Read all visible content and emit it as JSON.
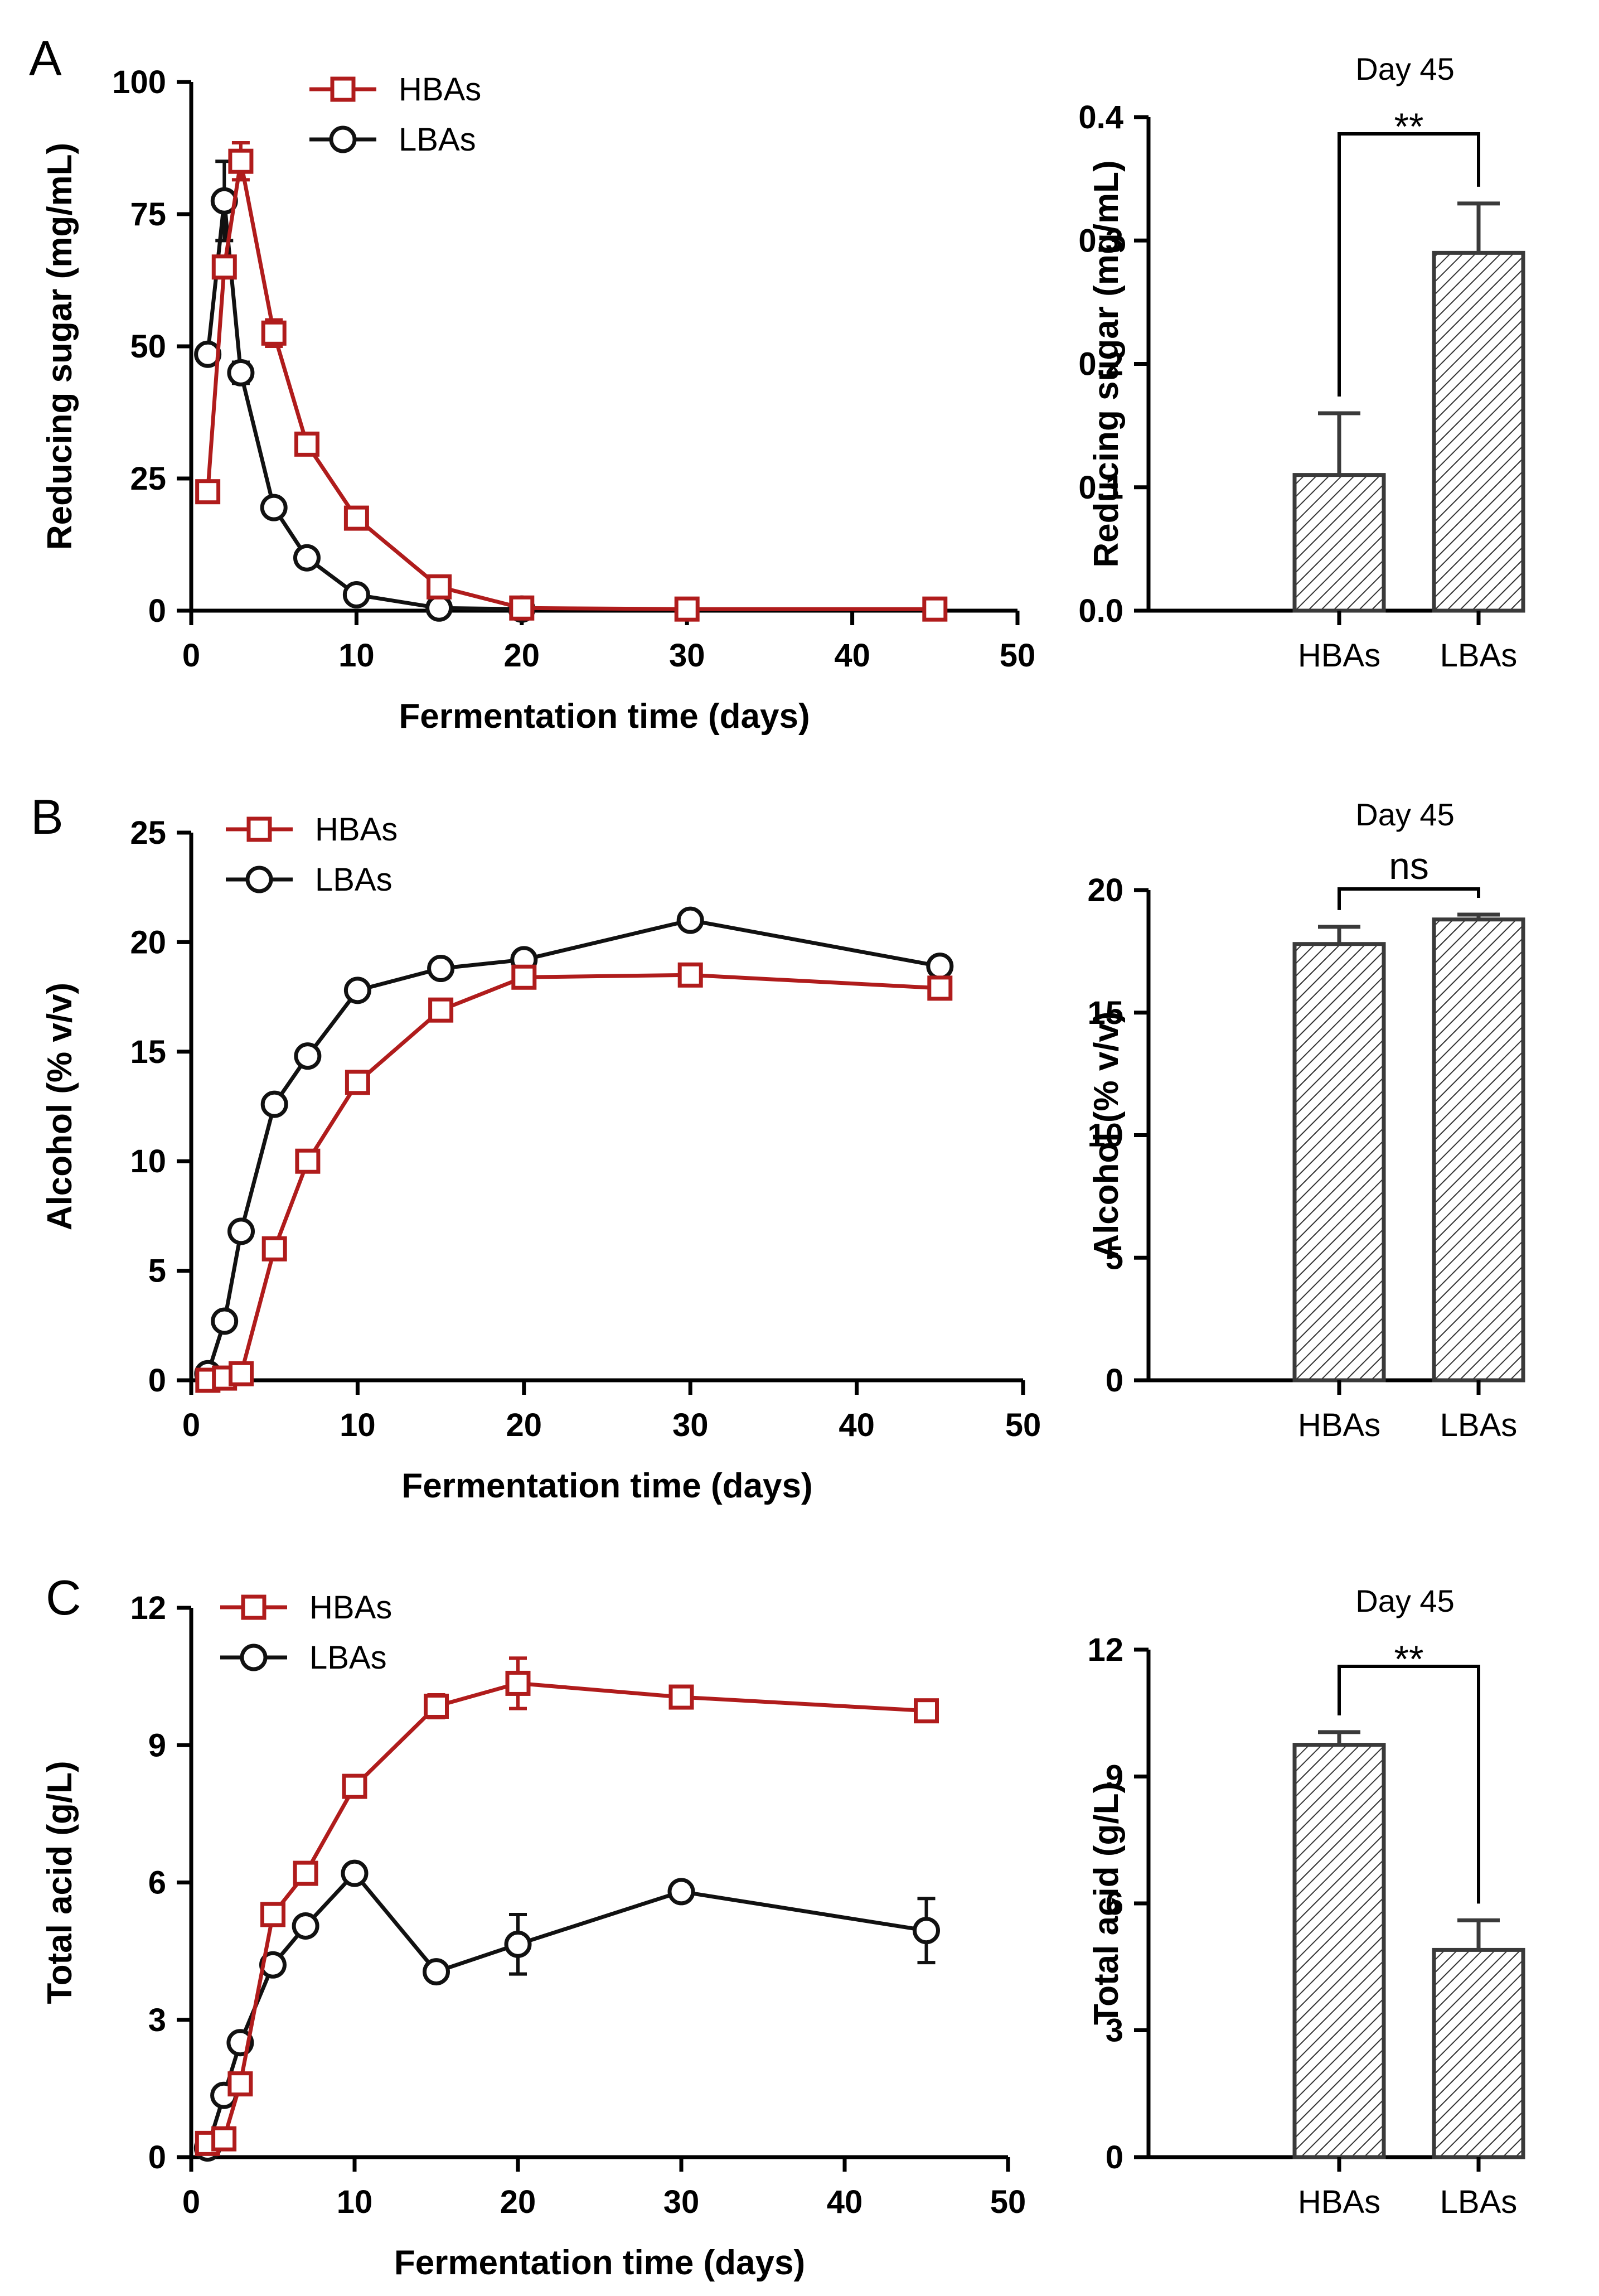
{
  "colors": {
    "HBAs": "#b01c1c",
    "LBAs": "#111111",
    "bar": "#3a3a3a"
  },
  "chart_data": [
    {
      "id": "A-line",
      "panel_label": "A",
      "type": "line",
      "xlabel": "Fermentation time (days)",
      "ylabel": "Reducing sugar (mg/mL)",
      "xlim": [
        0,
        50
      ],
      "ylim": [
        0,
        100
      ],
      "xticks": [
        0,
        10,
        20,
        30,
        40,
        50
      ],
      "yticks": [
        0,
        25,
        50,
        75,
        100
      ],
      "legend_position": "top",
      "series": [
        {
          "name": "HBAs",
          "marker": "square",
          "x": [
            1,
            2,
            3,
            5,
            7,
            10,
            15,
            20,
            30,
            45
          ],
          "y": [
            22.5,
            65,
            85,
            52.5,
            31.5,
            17.5,
            4.5,
            0.5,
            0.3,
            0.3
          ],
          "err": [
            0,
            2,
            3.5,
            2.5,
            0,
            0,
            0,
            0,
            0,
            0
          ]
        },
        {
          "name": "LBAs",
          "marker": "circle",
          "x": [
            1,
            2,
            3,
            5,
            7,
            10,
            15,
            20
          ],
          "y": [
            48.5,
            77.5,
            45,
            19.5,
            10,
            3,
            0.5,
            0.3
          ],
          "err": [
            0,
            7.5,
            2,
            1.5,
            0,
            0,
            0,
            0
          ]
        }
      ]
    },
    {
      "id": "A-bar",
      "type": "bar",
      "title": "Day 45",
      "ylabel": "Reducing sugar (mg/mL)",
      "categories": [
        "HBAs",
        "LBAs"
      ],
      "values": [
        0.11,
        0.29
      ],
      "err": [
        0.05,
        0.04
      ],
      "ylim": [
        0,
        0.4
      ],
      "yticks": [
        "0.0",
        "0.1",
        "0.2",
        "0.3",
        "0.4"
      ],
      "significance": "**"
    },
    {
      "id": "B-line",
      "panel_label": "B",
      "type": "line",
      "xlabel": "Fermentation time (days)",
      "ylabel": "Alcohol (% v/v)",
      "xlim": [
        0,
        50
      ],
      "ylim": [
        0,
        25
      ],
      "xticks": [
        0,
        10,
        20,
        30,
        40,
        50
      ],
      "yticks": [
        0,
        5,
        10,
        15,
        20,
        25
      ],
      "legend_position": "top-left",
      "series": [
        {
          "name": "HBAs",
          "marker": "square",
          "x": [
            1,
            2,
            3,
            5,
            7,
            10,
            15,
            20,
            30,
            45
          ],
          "y": [
            0,
            0.1,
            0.3,
            6,
            10,
            13.6,
            16.9,
            18.4,
            18.5,
            17.9
          ],
          "err": [
            0,
            0,
            0,
            0,
            0,
            0,
            0,
            0,
            0,
            0.4
          ]
        },
        {
          "name": "LBAs",
          "marker": "circle",
          "x": [
            1,
            2,
            3,
            5,
            7,
            10,
            15,
            20,
            30,
            45
          ],
          "y": [
            0.3,
            2.7,
            6.8,
            12.6,
            14.8,
            17.8,
            18.8,
            19.2,
            21,
            18.9
          ],
          "err": [
            0,
            0,
            0,
            0,
            0,
            0,
            0,
            0,
            0,
            0
          ]
        }
      ]
    },
    {
      "id": "B-bar",
      "type": "bar",
      "title": "Day 45",
      "ylabel": "Alcohol (% v/v)",
      "categories": [
        "HBAs",
        "LBAs"
      ],
      "values": [
        17.8,
        18.8
      ],
      "err": [
        0.7,
        0.2
      ],
      "ylim": [
        0,
        20
      ],
      "yticks": [
        "0",
        "5",
        "10",
        "15",
        "20"
      ],
      "significance": "ns"
    },
    {
      "id": "C-line",
      "panel_label": "C",
      "type": "line",
      "xlabel": "Fermentation time (days)",
      "ylabel": "Total acid (g/L)",
      "xlim": [
        0,
        50
      ],
      "ylim": [
        0,
        12
      ],
      "xticks": [
        0,
        10,
        20,
        30,
        40,
        50
      ],
      "yticks": [
        0,
        3,
        6,
        9,
        12
      ],
      "legend_position": "top-left",
      "series": [
        {
          "name": "HBAs",
          "marker": "square",
          "x": [
            1,
            2,
            3,
            5,
            7,
            10,
            15,
            20,
            30,
            45
          ],
          "y": [
            0.3,
            0.4,
            1.6,
            5.3,
            6.2,
            8.1,
            9.85,
            10.35,
            10.05,
            9.75
          ],
          "err": [
            0,
            0,
            0,
            0,
            0,
            0,
            0.25,
            0.55,
            0,
            0
          ]
        },
        {
          "name": "LBAs",
          "marker": "circle",
          "x": [
            1,
            2,
            3,
            5,
            7,
            10,
            15,
            20,
            30,
            45
          ],
          "y": [
            0.2,
            1.35,
            2.5,
            4.2,
            5.05,
            6.2,
            4.05,
            4.65,
            5.8,
            4.95
          ],
          "err": [
            0,
            0,
            0,
            0,
            0,
            0,
            0,
            0.65,
            0,
            0.7
          ]
        }
      ]
    },
    {
      "id": "C-bar",
      "type": "bar",
      "title": "Day 45",
      "ylabel": "Total acid (g/L)",
      "categories": [
        "HBAs",
        "LBAs"
      ],
      "values": [
        9.75,
        4.9
      ],
      "err": [
        0.3,
        0.7
      ],
      "ylim": [
        0,
        12
      ],
      "yticks": [
        "0",
        "3",
        "6",
        "9",
        "12"
      ],
      "significance": "**"
    }
  ]
}
